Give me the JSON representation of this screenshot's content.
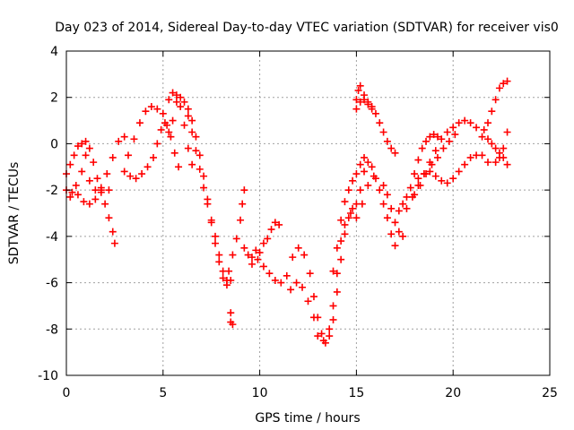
{
  "chart_data": {
    "type": "scatter",
    "title": "Day 023 of 2014, Sidereal Day-to-day VTEC variation (SDTVAR) for receiver vis0",
    "xlabel": "GPS time / hours",
    "ylabel": "SDTVAR / TECUs",
    "xlim": [
      0,
      25
    ],
    "ylim": [
      -10,
      4
    ],
    "xticks": [
      "0",
      "5",
      "10",
      "15",
      "20",
      "25"
    ],
    "yticks": [
      "4",
      "2",
      "0",
      "-2",
      "-4",
      "-6",
      "-8",
      "-10"
    ],
    "grid": true,
    "marker": "+",
    "series_color": "#ff0000",
    "series": [
      {
        "values": [
          [
            0.0,
            -1.3
          ],
          [
            0.2,
            -0.9
          ],
          [
            0.4,
            -0.5
          ],
          [
            0.6,
            -0.1
          ],
          [
            0.8,
            0.0
          ],
          [
            1.0,
            0.1
          ],
          [
            1.2,
            -0.2
          ],
          [
            1.4,
            -0.8
          ],
          [
            1.6,
            -1.5
          ],
          [
            1.8,
            -2.0
          ],
          [
            2.0,
            -2.6
          ],
          [
            2.2,
            -3.2
          ],
          [
            2.4,
            -3.8
          ],
          [
            2.5,
            -4.3
          ],
          [
            0.0,
            -2.0
          ],
          [
            0.3,
            -2.1
          ],
          [
            0.6,
            -2.2
          ],
          [
            0.9,
            -2.5
          ],
          [
            1.2,
            -2.6
          ],
          [
            1.5,
            -2.4
          ],
          [
            1.8,
            -1.9
          ],
          [
            2.1,
            -1.3
          ],
          [
            2.4,
            -0.6
          ],
          [
            2.7,
            0.1
          ],
          [
            3.0,
            0.3
          ],
          [
            0.2,
            -2.3
          ],
          [
            0.5,
            -1.8
          ],
          [
            0.8,
            -1.2
          ],
          [
            1.0,
            -0.5
          ],
          [
            1.2,
            -1.6
          ],
          [
            1.5,
            -2.0
          ],
          [
            1.8,
            -2.1
          ],
          [
            2.2,
            -2.0
          ],
          [
            3.0,
            -1.2
          ],
          [
            3.3,
            -1.4
          ],
          [
            3.6,
            -1.5
          ],
          [
            3.9,
            -1.3
          ],
          [
            4.2,
            -1.0
          ],
          [
            4.5,
            -0.6
          ],
          [
            4.7,
            0.0
          ],
          [
            4.9,
            0.6
          ],
          [
            5.1,
            0.9
          ],
          [
            5.3,
            0.5
          ],
          [
            3.2,
            -0.5
          ],
          [
            3.5,
            0.2
          ],
          [
            3.8,
            0.9
          ],
          [
            4.1,
            1.4
          ],
          [
            4.4,
            1.6
          ],
          [
            4.7,
            1.5
          ],
          [
            5.0,
            1.3
          ],
          [
            5.2,
            0.8
          ],
          [
            5.4,
            0.3
          ],
          [
            5.6,
            -0.4
          ],
          [
            5.8,
            -1.0
          ],
          [
            5.3,
            1.9
          ],
          [
            5.5,
            2.2
          ],
          [
            5.7,
            2.1
          ],
          [
            5.9,
            1.6
          ],
          [
            6.1,
            0.8
          ],
          [
            6.3,
            -0.2
          ],
          [
            6.5,
            -0.9
          ],
          [
            5.5,
            1.0
          ],
          [
            5.7,
            1.8
          ],
          [
            5.9,
            2.0
          ],
          [
            6.1,
            1.8
          ],
          [
            6.3,
            1.2
          ],
          [
            6.5,
            0.5
          ],
          [
            6.7,
            -0.3
          ],
          [
            6.9,
            -1.1
          ],
          [
            7.1,
            -1.9
          ],
          [
            7.3,
            -2.6
          ],
          [
            7.5,
            -3.3
          ],
          [
            7.7,
            -4.0
          ],
          [
            7.9,
            -4.8
          ],
          [
            8.1,
            -5.5
          ],
          [
            8.3,
            -5.9
          ],
          [
            6.3,
            1.5
          ],
          [
            6.5,
            1.0
          ],
          [
            6.7,
            0.3
          ],
          [
            6.9,
            -0.5
          ],
          [
            7.1,
            -1.4
          ],
          [
            7.3,
            -2.4
          ],
          [
            7.5,
            -3.4
          ],
          [
            7.7,
            -4.3
          ],
          [
            7.9,
            -5.1
          ],
          [
            8.1,
            -5.8
          ],
          [
            8.3,
            -6.1
          ],
          [
            8.5,
            -5.9
          ],
          [
            8.5,
            -7.3
          ],
          [
            8.5,
            -7.7
          ],
          [
            8.6,
            -7.8
          ],
          [
            8.4,
            -5.5
          ],
          [
            8.6,
            -4.8
          ],
          [
            8.8,
            -4.1
          ],
          [
            9.0,
            -3.3
          ],
          [
            9.1,
            -2.6
          ],
          [
            9.2,
            -2.0
          ],
          [
            9.2,
            -4.5
          ],
          [
            9.4,
            -4.8
          ],
          [
            9.6,
            -4.9
          ],
          [
            9.8,
            -4.6
          ],
          [
            10.0,
            -4.7
          ],
          [
            10.2,
            -4.3
          ],
          [
            10.4,
            -4.1
          ],
          [
            10.6,
            -3.7
          ],
          [
            10.8,
            -3.4
          ],
          [
            11.0,
            -3.5
          ],
          [
            9.6,
            -5.2
          ],
          [
            9.9,
            -5.0
          ],
          [
            10.2,
            -5.3
          ],
          [
            10.5,
            -5.6
          ],
          [
            10.8,
            -5.9
          ],
          [
            11.1,
            -6.0
          ],
          [
            11.4,
            -5.7
          ],
          [
            11.7,
            -4.9
          ],
          [
            12.0,
            -4.5
          ],
          [
            12.3,
            -4.8
          ],
          [
            12.6,
            -5.6
          ],
          [
            12.8,
            -6.6
          ],
          [
            13.0,
            -7.5
          ],
          [
            13.2,
            -8.2
          ],
          [
            13.4,
            -8.6
          ],
          [
            13.6,
            -8.3
          ],
          [
            13.8,
            -7.6
          ],
          [
            14.0,
            -6.4
          ],
          [
            14.2,
            -5.0
          ],
          [
            14.4,
            -3.9
          ],
          [
            14.6,
            -3.2
          ],
          [
            14.8,
            -2.8
          ],
          [
            15.0,
            -2.6
          ],
          [
            15.2,
            -2.0
          ],
          [
            15.4,
            -1.2
          ],
          [
            15.6,
            -0.8
          ],
          [
            15.8,
            -1.0
          ],
          [
            16.0,
            -1.5
          ],
          [
            16.2,
            -2.0
          ],
          [
            16.4,
            -2.6
          ],
          [
            16.6,
            -3.2
          ],
          [
            16.8,
            -3.9
          ],
          [
            17.0,
            -4.4
          ],
          [
            11.6,
            -6.3
          ],
          [
            11.9,
            -6.0
          ],
          [
            12.2,
            -6.2
          ],
          [
            12.5,
            -6.8
          ],
          [
            12.8,
            -7.5
          ],
          [
            13.0,
            -8.3
          ],
          [
            13.3,
            -8.5
          ],
          [
            13.6,
            -8.0
          ],
          [
            13.8,
            -7.0
          ],
          [
            14.0,
            -5.6
          ],
          [
            14.2,
            -4.2
          ],
          [
            14.4,
            -3.5
          ],
          [
            14.7,
            -3.0
          ],
          [
            15.0,
            -3.2
          ],
          [
            15.3,
            -2.6
          ],
          [
            15.6,
            -1.8
          ],
          [
            15.9,
            -1.4
          ],
          [
            13.8,
            -5.5
          ],
          [
            14.0,
            -4.5
          ],
          [
            14.2,
            -3.3
          ],
          [
            14.4,
            -2.5
          ],
          [
            14.6,
            -2.0
          ],
          [
            14.8,
            -1.6
          ],
          [
            15.0,
            -1.3
          ],
          [
            15.2,
            -0.9
          ],
          [
            15.4,
            -0.6
          ],
          [
            15.0,
            1.9
          ],
          [
            15.1,
            2.3
          ],
          [
            15.2,
            2.5
          ],
          [
            15.4,
            2.1
          ],
          [
            15.6,
            1.8
          ],
          [
            15.8,
            1.6
          ],
          [
            16.0,
            1.3
          ],
          [
            16.2,
            0.9
          ],
          [
            16.4,
            0.5
          ],
          [
            16.6,
            0.1
          ],
          [
            16.8,
            -0.2
          ],
          [
            17.0,
            -0.4
          ],
          [
            15.0,
            1.5
          ],
          [
            15.2,
            1.8
          ],
          [
            15.4,
            1.9
          ],
          [
            15.6,
            1.7
          ],
          [
            15.8,
            1.5
          ],
          [
            16.4,
            -1.8
          ],
          [
            16.6,
            -2.2
          ],
          [
            16.8,
            -2.8
          ],
          [
            17.0,
            -3.4
          ],
          [
            17.2,
            -3.8
          ],
          [
            17.4,
            -4.0
          ],
          [
            17.2,
            -2.9
          ],
          [
            17.4,
            -2.6
          ],
          [
            17.6,
            -2.3
          ],
          [
            17.8,
            -1.9
          ],
          [
            18.0,
            -1.3
          ],
          [
            18.2,
            -0.7
          ],
          [
            18.4,
            -0.2
          ],
          [
            18.6,
            0.1
          ],
          [
            18.8,
            0.3
          ],
          [
            19.0,
            0.4
          ],
          [
            19.2,
            0.3
          ],
          [
            17.6,
            -2.8
          ],
          [
            17.9,
            -2.3
          ],
          [
            18.2,
            -1.8
          ],
          [
            18.5,
            -1.3
          ],
          [
            18.8,
            -0.8
          ],
          [
            19.1,
            -0.3
          ],
          [
            19.4,
            0.2
          ],
          [
            19.7,
            0.5
          ],
          [
            20.0,
            0.7
          ],
          [
            20.3,
            0.9
          ],
          [
            20.6,
            1.0
          ],
          [
            20.9,
            0.9
          ],
          [
            21.2,
            0.7
          ],
          [
            21.5,
            0.3
          ],
          [
            18.0,
            -2.2
          ],
          [
            18.3,
            -1.8
          ],
          [
            18.6,
            -1.3
          ],
          [
            18.9,
            -0.9
          ],
          [
            19.2,
            -0.6
          ],
          [
            19.5,
            -0.2
          ],
          [
            19.8,
            0.1
          ],
          [
            20.1,
            0.4
          ],
          [
            18.2,
            -1.5
          ],
          [
            18.5,
            -1.3
          ],
          [
            18.8,
            -1.2
          ],
          [
            19.1,
            -1.4
          ],
          [
            19.4,
            -1.6
          ],
          [
            19.7,
            -1.7
          ],
          [
            20.0,
            -1.5
          ],
          [
            20.3,
            -1.2
          ],
          [
            20.6,
            -0.9
          ],
          [
            20.9,
            -0.6
          ],
          [
            21.2,
            -0.5
          ],
          [
            21.5,
            -0.5
          ],
          [
            21.8,
            -0.8
          ],
          [
            21.6,
            0.6
          ],
          [
            21.8,
            0.2
          ],
          [
            22.0,
            0.0
          ],
          [
            22.2,
            -0.2
          ],
          [
            22.4,
            -0.4
          ],
          [
            22.6,
            -0.6
          ],
          [
            22.8,
            -0.9
          ],
          [
            21.8,
            0.9
          ],
          [
            22.0,
            1.4
          ],
          [
            22.2,
            1.9
          ],
          [
            22.4,
            2.4
          ],
          [
            22.6,
            2.6
          ],
          [
            22.8,
            2.7
          ],
          [
            22.2,
            -0.8
          ],
          [
            22.4,
            -0.6
          ],
          [
            22.6,
            -0.2
          ],
          [
            22.8,
            0.5
          ]
        ]
      }
    ]
  }
}
